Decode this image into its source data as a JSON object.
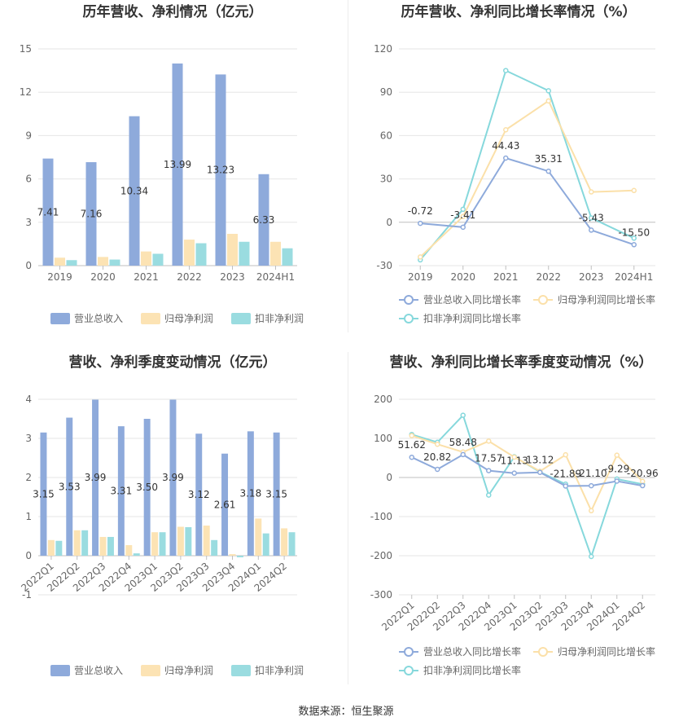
{
  "colors": {
    "revenue": "#8eaadb",
    "net_profit": "#fce3b4",
    "deducted_profit": "#9adce0",
    "revenue_line": "#8eaadb",
    "net_line": "#fbe0a9",
    "deducted_line": "#86d8dc"
  },
  "footer": {
    "source": "数据来源：恒生聚源"
  },
  "chart_data": [
    {
      "type": "bar",
      "title": "历年营收、净利情况（亿元）",
      "categories": [
        "2019",
        "2020",
        "2021",
        "2022",
        "2023",
        "2024H1"
      ],
      "ylim": [
        0,
        15
      ],
      "yticks": [
        "0",
        "3",
        "6",
        "9",
        "12",
        "15"
      ],
      "grid": true,
      "legend_position": "bottom",
      "series": [
        {
          "name": "营业总收入",
          "values": [
            7.41,
            7.16,
            10.34,
            13.99,
            13.23,
            6.33
          ],
          "labels": [
            "7.41",
            "7.16",
            "10.34",
            "13.99",
            "13.23",
            "6.33"
          ]
        },
        {
          "name": "归母净利润",
          "values": [
            0.55,
            0.6,
            0.98,
            1.8,
            2.2,
            1.65
          ]
        },
        {
          "name": "扣非净利润",
          "values": [
            0.38,
            0.42,
            0.82,
            1.55,
            1.65,
            1.2
          ]
        }
      ]
    },
    {
      "type": "line",
      "title": "历年营收、净利同比增长率情况（%）",
      "categories": [
        "2019",
        "2020",
        "2021",
        "2022",
        "2023",
        "2024H1"
      ],
      "ylim": [
        -30,
        120
      ],
      "yticks": [
        "-30",
        "0",
        "30",
        "60",
        "90",
        "120"
      ],
      "grid": true,
      "legend_position": "bottom",
      "series": [
        {
          "name": "营业总收入同比增长率",
          "values": [
            -0.72,
            -3.41,
            44.43,
            35.31,
            -5.43,
            -15.5
          ],
          "labels": [
            "-0.72",
            "-3.41",
            "44.43",
            "35.31",
            "-5.43",
            "-15.50"
          ]
        },
        {
          "name": "归母净利润同比增长率",
          "values": [
            -24,
            4,
            64,
            84,
            21,
            22
          ]
        },
        {
          "name": "扣非净利润同比增长率",
          "values": [
            -26,
            9,
            105,
            91,
            3,
            -11
          ]
        }
      ]
    },
    {
      "type": "bar",
      "title": "营收、净利季度变动情况（亿元）",
      "categories": [
        "2022Q1",
        "2022Q2",
        "2022Q3",
        "2022Q4",
        "2023Q1",
        "2023Q2",
        "2023Q3",
        "2023Q4",
        "2024Q1",
        "2024Q2"
      ],
      "ylim": [
        -1,
        4
      ],
      "yticks": [
        "-1",
        "0",
        "1",
        "2",
        "3",
        "4"
      ],
      "grid": true,
      "legend_position": "bottom",
      "series": [
        {
          "name": "营业总收入",
          "values": [
            3.15,
            3.53,
            3.99,
            3.31,
            3.5,
            3.99,
            3.12,
            2.61,
            3.18,
            3.15
          ],
          "labels": [
            "3.15",
            "3.53",
            "3.99",
            "3.31",
            "3.50",
            "3.99",
            "3.12",
            "2.61",
            "3.18",
            "3.15"
          ]
        },
        {
          "name": "归母净利润",
          "values": [
            0.4,
            0.65,
            0.48,
            0.27,
            0.6,
            0.74,
            0.77,
            0.04,
            0.95,
            0.7
          ]
        },
        {
          "name": "扣非净利润",
          "values": [
            0.38,
            0.65,
            0.48,
            0.06,
            0.6,
            0.73,
            0.4,
            -0.04,
            0.57,
            0.6
          ]
        }
      ]
    },
    {
      "type": "line",
      "title": "营收、净利同比增长率季度变动情况（%）",
      "categories": [
        "2022Q1",
        "2022Q2",
        "2022Q3",
        "2022Q4",
        "2023Q1",
        "2023Q2",
        "2023Q3",
        "2023Q4",
        "2024Q1",
        "2024Q2"
      ],
      "ylim": [
        -300,
        200
      ],
      "yticks": [
        "-300",
        "-200",
        "-100",
        "0",
        "100",
        "200"
      ],
      "grid": true,
      "legend_position": "bottom",
      "series": [
        {
          "name": "营业总收入同比增长率",
          "values": [
            51.62,
            20.82,
            58.48,
            17.57,
            11.13,
            13.12,
            -21.89,
            -21.1,
            -9.29,
            -20.96
          ],
          "labels": [
            "51.62",
            "20.82",
            "58.48",
            "17.57",
            "11.13",
            "13.12",
            "-21.89",
            "-21.10",
            "-9.29",
            "-20.96"
          ]
        },
        {
          "name": "归母净利润同比增长率",
          "values": [
            107,
            85,
            65,
            93,
            52,
            16,
            58,
            -85,
            57,
            -10
          ]
        },
        {
          "name": "扣非净利润同比增长率",
          "values": [
            110,
            90,
            159,
            -45,
            53,
            14,
            -17,
            -202,
            -4,
            -17
          ]
        }
      ]
    }
  ]
}
